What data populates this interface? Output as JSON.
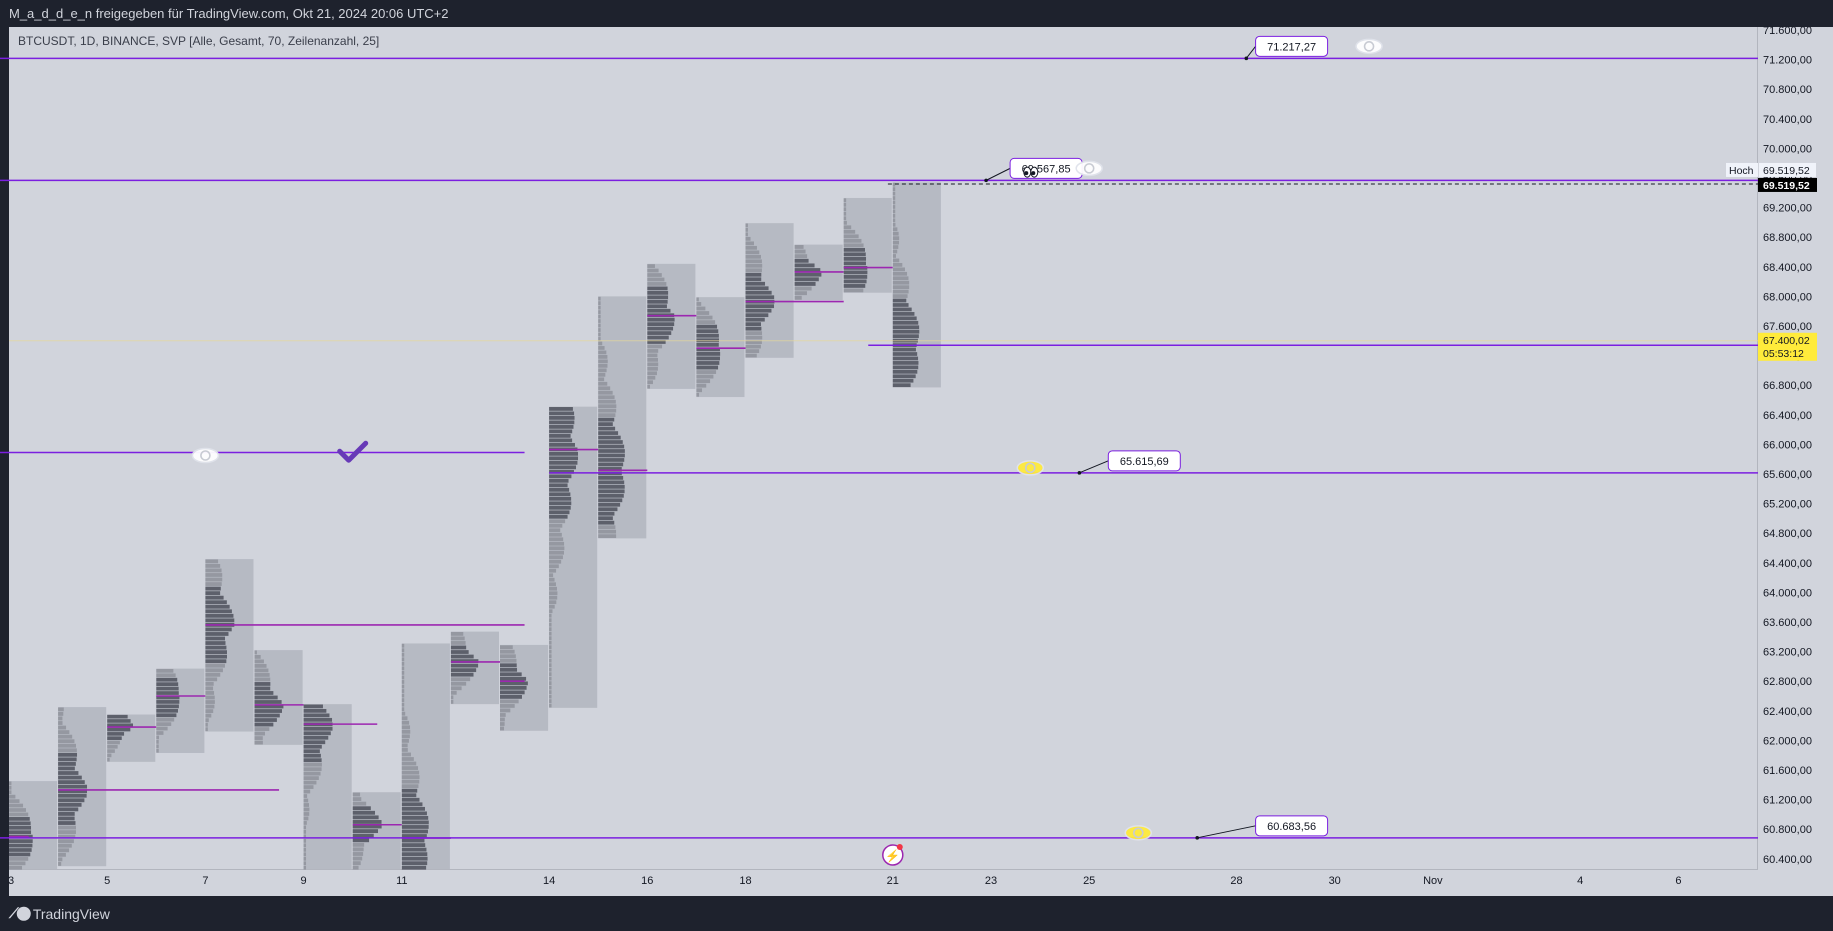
{
  "header": {
    "title": "M_a_d_d_e_n freigegeben für TradingView.com, Okt 21, 2024 20:06 UTC+2"
  },
  "footer": {
    "brand": "TradingView"
  },
  "colors": {
    "chart_bg": "#d1d4dc",
    "frame_bg": "#1e222d",
    "level_line": "#7b1fe0",
    "profile_box": "#b2b5be",
    "profile_bar_dark": "#5d606b",
    "profile_bar_light": "#9598a1",
    "poc_line": "#9c27b0",
    "current_price_bg": "#ffeb3b",
    "high_label_bg": "#000000",
    "eye_white": "#ffffff",
    "eye_yellow": "#ffeb3b",
    "check": "#673ab7"
  },
  "chart_data": {
    "type": "volume-profile",
    "symbol_line": "BTCUSDT, 1D, BINANCE, SVP [Alle, Gesamt, 70, Zeilenanzahl, 25]",
    "ylim": [
      60100,
      71900
    ],
    "y_ticks": [
      "71.600,00",
      "71.200,00",
      "70.800,00",
      "70.400,00",
      "70.000,00",
      "69.600,00",
      "69.200,00",
      "68.800,00",
      "68.400,00",
      "68.000,00",
      "67.600,00",
      "67.200,00",
      "66.800,00",
      "66.400,00",
      "66.000,00",
      "65.600,00",
      "65.200,00",
      "64.800,00",
      "64.400,00",
      "64.000,00",
      "63.600,00",
      "63.200,00",
      "62.800,00",
      "62.400,00",
      "62.000,00",
      "61.600,00",
      "61.200,00",
      "60.800,00",
      "60.400,00"
    ],
    "y_tick_values": [
      71600,
      71200,
      70800,
      70400,
      70000,
      69600,
      69200,
      68800,
      68400,
      68000,
      67600,
      67200,
      66800,
      66400,
      66000,
      65600,
      65200,
      64800,
      64400,
      64000,
      63600,
      63200,
      62800,
      62400,
      62000,
      61600,
      61200,
      60800,
      60400
    ],
    "x_ticks": [
      {
        "label": "3",
        "day": 3
      },
      {
        "label": "5",
        "day": 5
      },
      {
        "label": "7",
        "day": 7
      },
      {
        "label": "9",
        "day": 9
      },
      {
        "label": "11",
        "day": 11
      },
      {
        "label": "14",
        "day": 14
      },
      {
        "label": "16",
        "day": 16
      },
      {
        "label": "18",
        "day": 18
      },
      {
        "label": "21",
        "day": 21
      },
      {
        "label": "23",
        "day": 23
      },
      {
        "label": "25",
        "day": 25
      },
      {
        "label": "28",
        "day": 28
      },
      {
        "label": "30",
        "day": 30
      },
      {
        "label": "Nov",
        "day": 32
      },
      {
        "label": "4",
        "day": 35
      },
      {
        "label": "6",
        "day": 37
      }
    ],
    "levels": [
      {
        "price": 71217.27,
        "label": "71.217,27",
        "from_day": 2.8,
        "label_day": 29,
        "dot_day": 28.2,
        "eye": "white",
        "eye_day": 30.7
      },
      {
        "price": 69567.85,
        "label": "69.567,85",
        "from_day": 2.8,
        "label_day": 24,
        "dot_day": 22.9,
        "eye": "white",
        "eye_day": 25
      },
      {
        "price": 65890,
        "label": "",
        "from_day": 2.8,
        "to_day": 13.5
      },
      {
        "price": 65615.69,
        "label": "65.615,69",
        "from_day": 14,
        "label_day": 26,
        "dot_day": 24.8,
        "eye": "yellow",
        "eye_day": 23.8
      },
      {
        "price": 60683.56,
        "label": "60.683,56",
        "from_day": 2.8,
        "label_day": 29,
        "dot_day": 27.2,
        "eye": "yellow",
        "eye_day": 26
      },
      {
        "price": 67340,
        "label": "",
        "from_day": 20.5
      }
    ],
    "profiles": [
      {
        "day": 3,
        "low": 60100,
        "high": 61450,
        "poc": 60700,
        "poc_to": 3.4
      },
      {
        "day": 4,
        "low": 60300,
        "high": 62450,
        "poc": 61330,
        "poc_to": 8.5
      },
      {
        "day": 5,
        "low": 61710,
        "high": 62350,
        "poc": 62180,
        "poc_to": 6
      },
      {
        "day": 6,
        "low": 61830,
        "high": 62970,
        "poc": 62600,
        "poc_to": 7
      },
      {
        "day": 7,
        "low": 62120,
        "high": 64450,
        "poc": 63560,
        "poc_to": 13.5
      },
      {
        "day": 8,
        "low": 61940,
        "high": 63220,
        "poc": 62480,
        "poc_to": 9
      },
      {
        "day": 9,
        "low": 60100,
        "high": 62490,
        "poc": 62220,
        "poc_to": 10.5
      },
      {
        "day": 10,
        "low": 60100,
        "high": 61300,
        "poc": 60860,
        "poc_to": 11
      },
      {
        "day": 11,
        "low": 60100,
        "high": 63310,
        "poc": 60680,
        "poc_to": 12
      },
      {
        "day": 12,
        "low": 62490,
        "high": 63470,
        "poc": 63060,
        "poc_to": 13
      },
      {
        "day": 13,
        "low": 62130,
        "high": 63290,
        "poc": 62800,
        "poc_to": 13.5
      },
      {
        "day": 14,
        "low": 62440,
        "high": 66510,
        "poc": 65930,
        "poc_to": 15
      },
      {
        "day": 15,
        "low": 64730,
        "high": 68000,
        "poc": 65650,
        "poc_to": 16
      },
      {
        "day": 16,
        "low": 66750,
        "high": 68440,
        "poc": 67740,
        "poc_to": 17
      },
      {
        "day": 17,
        "low": 66640,
        "high": 67990,
        "poc": 67300,
        "poc_to": 18
      },
      {
        "day": 18,
        "low": 67170,
        "high": 68990,
        "poc": 67930,
        "poc_to": 20
      },
      {
        "day": 19,
        "low": 67950,
        "high": 68700,
        "poc": 68330,
        "poc_to": 20
      },
      {
        "day": 20,
        "low": 68050,
        "high": 69330,
        "poc": 68390,
        "poc_to": 21
      },
      {
        "day": 21,
        "low": 66770,
        "high": 69540,
        "poc": 67340,
        "poc_to": 21.7
      }
    ],
    "high": {
      "label": "Hoch",
      "value": "69.519,52",
      "price": 69519.52
    },
    "current": {
      "value": "67.400,02",
      "countdown": "05:53:12",
      "price": 67400.02
    },
    "symbols": [
      {
        "name": "eye-icon",
        "color": "white",
        "day": 7,
        "price": 65850
      },
      {
        "name": "check-icon",
        "day": 10,
        "price": 65880
      },
      {
        "name": "eyes-emoji",
        "day": 23.8,
        "price": 69680
      }
    ],
    "grid": false
  }
}
